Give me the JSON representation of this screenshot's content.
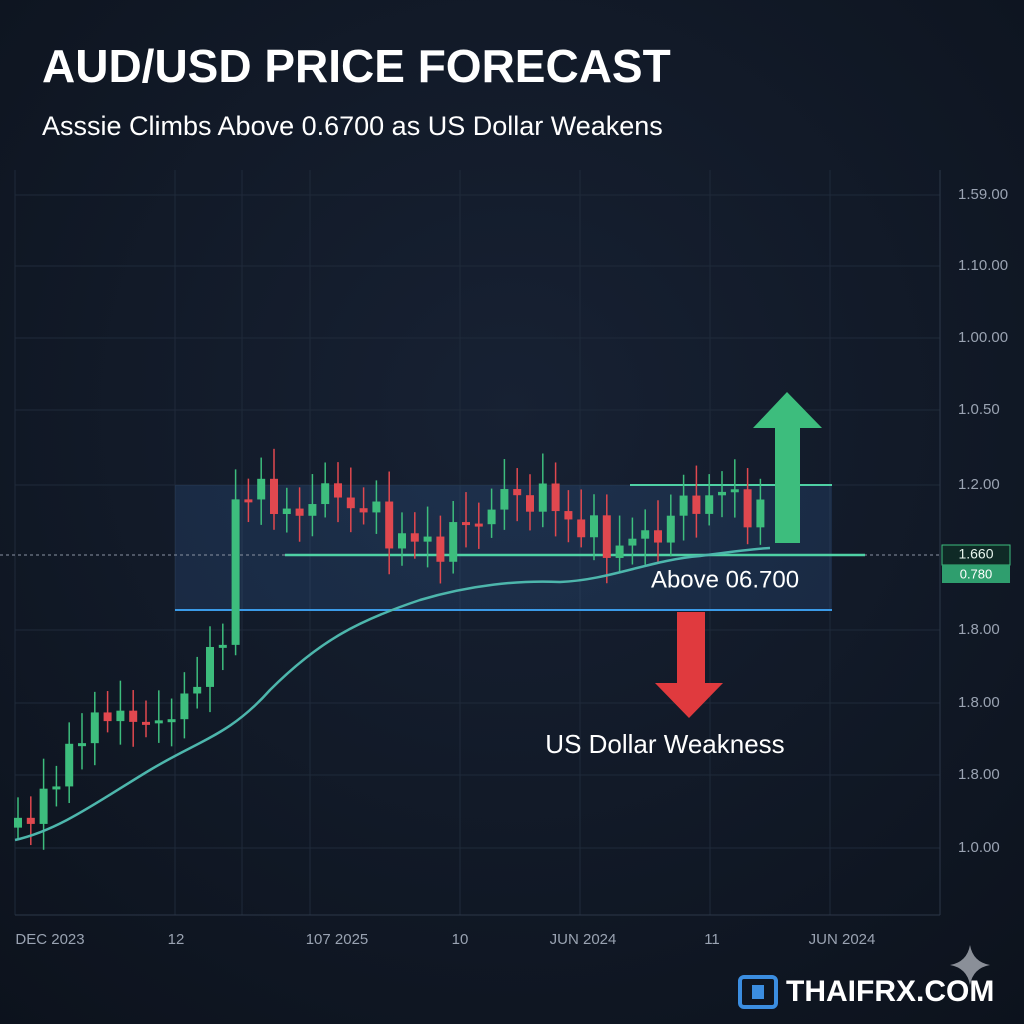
{
  "header": {
    "title": "AUD/USD PRICE FORECAST",
    "subtitle": "Asssie Climbs Above 0.6700 as US Dollar Weakens"
  },
  "y_axis_labels": [
    "1.59.00",
    "1.10.00",
    "1.00.00",
    "1.0.50",
    "1.2.00",
    "1.8.00",
    "1.8.00",
    "1.8.00",
    "1.0.00"
  ],
  "x_axis_labels": [
    "DEC 2023",
    "12",
    "107 2025",
    "10",
    "JUN 2024",
    "11",
    "JUN 2024"
  ],
  "price_tag": {
    "top": "1.660",
    "bottom": "0.780"
  },
  "annotations": {
    "above": "Above 06.700",
    "weakness": "US Dollar Weakness"
  },
  "brand": "THAIFRX.COM"
}
